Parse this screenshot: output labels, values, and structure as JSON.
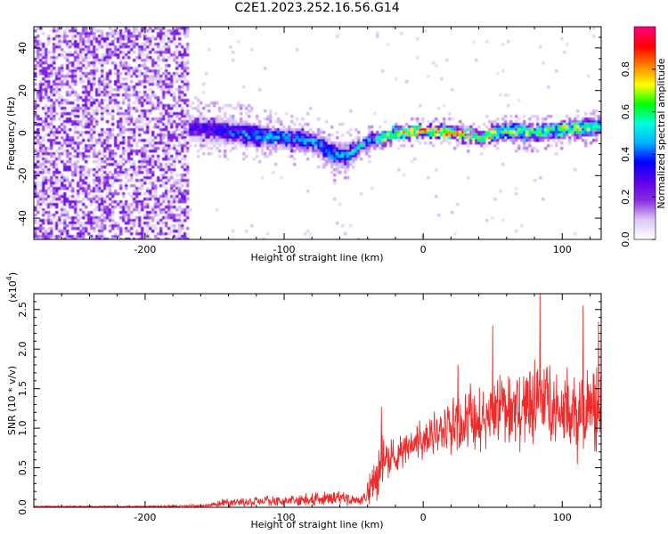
{
  "figure": {
    "title": "C2E1.2023.252.16.56.G14"
  },
  "colors": {
    "snr_line": "#ee2b2b",
    "axes": "#000000",
    "colormap": [
      "#ffffff",
      "#dcc8f4",
      "#8a2be2",
      "#5b00e6",
      "#0000ff",
      "#00b4ff",
      "#00ffdc",
      "#00ff00",
      "#ffff00",
      "#ff8000",
      "#ff0000",
      "#ff0080"
    ]
  },
  "chart_data": [
    {
      "type": "heatmap",
      "name": "spectrogram",
      "xlabel": "Height of straight line (km)",
      "ylabel": "Frequency (Hz)",
      "xlim": [
        -280,
        128
      ],
      "ylim": [
        -50,
        50
      ],
      "xticks": [
        -200,
        -100,
        0,
        100
      ],
      "yticks": [
        -40,
        -20,
        0,
        20,
        40
      ],
      "grid": false,
      "colorbar": {
        "label": "Normalized spectral amplitude",
        "range": [
          0,
          1
        ],
        "ticks": [
          0.0,
          0.2,
          0.4,
          0.6,
          0.8
        ],
        "tick_labels": [
          "0.0",
          "0.2",
          "0.4",
          "0.6",
          "0.8"
        ]
      },
      "regions": [
        {
          "x_from": -280,
          "x_to": -168,
          "description_level": "diffuse noise across full band",
          "amplitude_range": [
            0.05,
            0.25
          ]
        }
      ],
      "ridge": [
        {
          "x": -165,
          "y": 2.0,
          "halfwidth": 6,
          "amplitude": 0.3
        },
        {
          "x": -150,
          "y": 1.5,
          "halfwidth": 6,
          "amplitude": 0.35
        },
        {
          "x": -135,
          "y": 0.5,
          "halfwidth": 6,
          "amplitude": 0.4
        },
        {
          "x": -120,
          "y": -1.0,
          "halfwidth": 6,
          "amplitude": 0.45
        },
        {
          "x": -105,
          "y": -2.0,
          "halfwidth": 5,
          "amplitude": 0.45
        },
        {
          "x": -90,
          "y": -3.0,
          "halfwidth": 5,
          "amplitude": 0.45
        },
        {
          "x": -75,
          "y": -5.0,
          "halfwidth": 5,
          "amplitude": 0.45
        },
        {
          "x": -65,
          "y": -10.0,
          "halfwidth": 6,
          "amplitude": 0.45
        },
        {
          "x": -55,
          "y": -11.0,
          "halfwidth": 6,
          "amplitude": 0.45
        },
        {
          "x": -45,
          "y": -6.0,
          "halfwidth": 4,
          "amplitude": 0.5
        },
        {
          "x": -35,
          "y": -3.0,
          "halfwidth": 3,
          "amplitude": 0.6
        },
        {
          "x": -20,
          "y": 0.0,
          "halfwidth": 3,
          "amplitude": 0.75
        },
        {
          "x": 0,
          "y": 1.0,
          "halfwidth": 3,
          "amplitude": 0.9
        },
        {
          "x": 20,
          "y": 0.5,
          "halfwidth": 3,
          "amplitude": 0.9
        },
        {
          "x": 40,
          "y": -2.0,
          "halfwidth": 3,
          "amplitude": 0.75
        },
        {
          "x": 60,
          "y": 1.0,
          "halfwidth": 4,
          "amplitude": 0.65
        },
        {
          "x": 80,
          "y": 0.0,
          "halfwidth": 4,
          "amplitude": 0.65
        },
        {
          "x": 100,
          "y": 2.0,
          "halfwidth": 4,
          "amplitude": 0.65
        },
        {
          "x": 128,
          "y": 3.0,
          "halfwidth": 4,
          "amplitude": 0.65
        }
      ]
    },
    {
      "type": "line",
      "name": "snr",
      "xlabel": "Height of straight line (km)",
      "ylabel": "SNR (10 * v/v)",
      "ymultiplier": "(x10",
      "ymultiplier_exp": "4",
      "ymultiplier_close": ")",
      "xlim": [
        -280,
        128
      ],
      "ylim": [
        0,
        2.7
      ],
      "xticks": [
        -200,
        -100,
        0,
        100
      ],
      "yticks": [
        0.0,
        0.5,
        1.0,
        1.5,
        2.0,
        2.5
      ],
      "ytick_labels": [
        "0.0",
        "0.5",
        "1.0",
        "1.5",
        "2.0",
        "2.5"
      ],
      "grid": false,
      "envelope": [
        {
          "x": -280,
          "mean": 0.01,
          "spread": 0.01
        },
        {
          "x": -200,
          "mean": 0.01,
          "spread": 0.01
        },
        {
          "x": -155,
          "mean": 0.02,
          "spread": 0.02
        },
        {
          "x": -145,
          "mean": 0.06,
          "spread": 0.05
        },
        {
          "x": -100,
          "mean": 0.08,
          "spread": 0.07
        },
        {
          "x": -60,
          "mean": 0.12,
          "spread": 0.09
        },
        {
          "x": -45,
          "mean": 0.08,
          "spread": 0.06
        },
        {
          "x": -35,
          "mean": 0.35,
          "spread": 0.3
        },
        {
          "x": -30,
          "mean": 0.6,
          "spread": 0.35
        },
        {
          "x": -10,
          "mean": 0.75,
          "spread": 0.25
        },
        {
          "x": 10,
          "mean": 0.95,
          "spread": 0.3
        },
        {
          "x": 30,
          "mean": 1.1,
          "spread": 0.4
        },
        {
          "x": 60,
          "mean": 1.25,
          "spread": 0.5
        },
        {
          "x": 85,
          "mean": 1.35,
          "spread": 0.6
        },
        {
          "x": 105,
          "mean": 1.2,
          "spread": 0.6
        },
        {
          "x": 128,
          "mean": 1.2,
          "spread": 0.65
        }
      ],
      "peaks": [
        {
          "x": -30,
          "y": 1.27
        },
        {
          "x": 25,
          "y": 1.8
        },
        {
          "x": 50,
          "y": 2.3
        },
        {
          "x": 84,
          "y": 2.7
        },
        {
          "x": 115,
          "y": 2.55
        },
        {
          "x": 126,
          "y": 2.35
        }
      ]
    }
  ]
}
